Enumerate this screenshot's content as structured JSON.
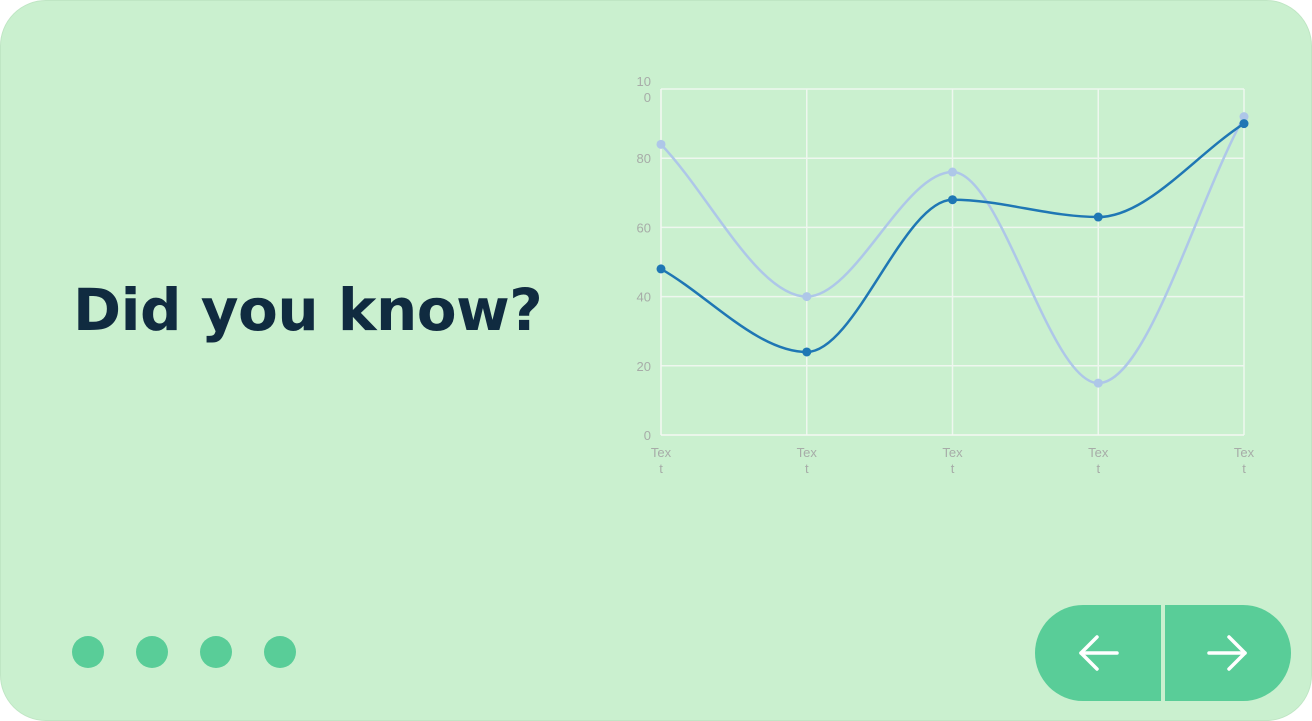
{
  "headline": "Did you know?",
  "colors": {
    "background": "#caf0cf",
    "accent": "#59cd98",
    "headline": "#102b40",
    "series_dark": "#1f77b4",
    "series_light": "#aec7e8"
  },
  "pagination": {
    "count": 4
  },
  "navigation": {
    "prev_icon": "arrow-left-icon",
    "next_icon": "arrow-right-icon"
  },
  "chart_data": {
    "type": "line",
    "categories": [
      "Text",
      "Text",
      "Text",
      "Text",
      "Text"
    ],
    "category_label_lines": [
      [
        "Tex",
        "t"
      ],
      [
        "Tex",
        "t"
      ],
      [
        "Tex",
        "t"
      ],
      [
        "Tex",
        "t"
      ],
      [
        "Tex",
        "t"
      ]
    ],
    "series": [
      {
        "color": "#1f77b4",
        "values": [
          48,
          24,
          68,
          63,
          90
        ]
      },
      {
        "color": "#aec7e8",
        "values": [
          84,
          40,
          76,
          15,
          92
        ]
      }
    ],
    "ylim": [
      0,
      100
    ],
    "yticks": [
      0,
      20,
      40,
      60,
      80,
      100
    ],
    "ytick_labels": [
      [
        "0"
      ],
      [
        "20"
      ],
      [
        "40"
      ],
      [
        "60"
      ],
      [
        "80"
      ],
      [
        "10",
        "0"
      ]
    ],
    "grid": true,
    "smooth": true,
    "legend": "none"
  }
}
